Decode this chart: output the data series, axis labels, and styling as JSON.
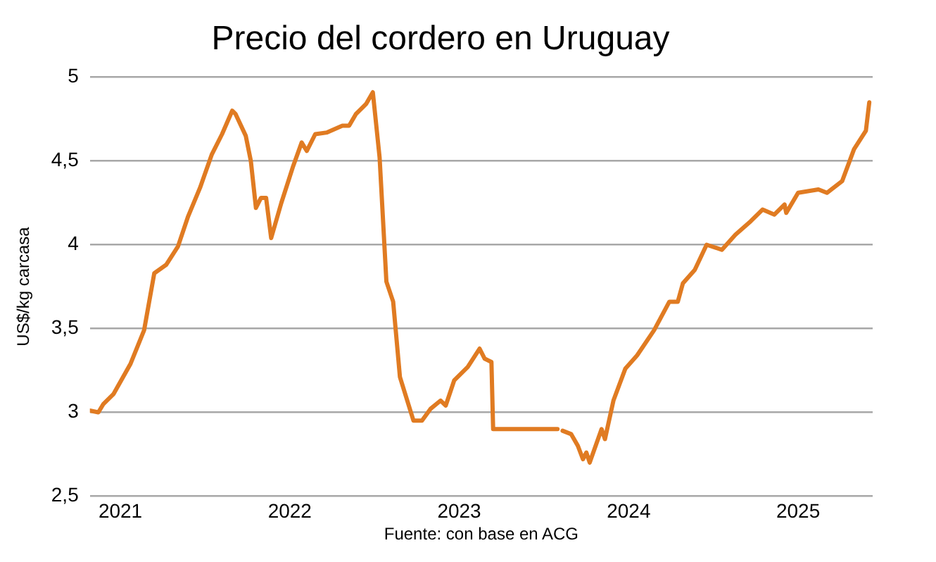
{
  "chart_data": {
    "type": "line",
    "title": "Precio del cordero en Uruguay",
    "ylabel": "US$/kg carcasa",
    "annotations": [
      "Fuente: con base en ACG"
    ],
    "x": [
      2020.82,
      2020.87,
      2020.9,
      2020.96,
      2021.06,
      2021.14,
      2021.2,
      2021.27,
      2021.34,
      2021.4,
      2021.47,
      2021.54,
      2021.6,
      2021.66,
      2021.68,
      2021.74,
      2021.77,
      2021.8,
      2021.83,
      2021.86,
      2021.89,
      2021.95,
      2022.02,
      2022.07,
      2022.1,
      2022.15,
      2022.22,
      2022.31,
      2022.35,
      2022.39,
      2022.45,
      2022.49,
      2022.53,
      2022.57,
      2022.61,
      2022.65,
      2022.73,
      2022.78,
      2022.83,
      2022.89,
      2022.92,
      2022.97,
      2023.05,
      2023.12,
      2023.15,
      2023.19,
      2023.2,
      2023.58,
      2023.6,
      2023.61,
      2023.66,
      2023.7,
      2023.73,
      2023.75,
      2023.77,
      2023.84,
      2023.86,
      2023.91,
      2023.98,
      2024.05,
      2024.15,
      2024.24,
      2024.29,
      2024.32,
      2024.39,
      2024.46,
      2024.55,
      2024.63,
      2024.72,
      2024.79,
      2024.86,
      2024.92,
      2024.93,
      2025.0,
      2025.12,
      2025.17,
      2025.26,
      2025.33,
      2025.4,
      2025.42
    ],
    "series": [
      {
        "color": "#e07b22",
        "values": [
          3.01,
          3.0,
          3.05,
          3.11,
          3.29,
          3.49,
          3.83,
          3.88,
          3.99,
          4.17,
          4.34,
          4.54,
          4.66,
          4.8,
          4.78,
          4.65,
          4.5,
          4.22,
          4.28,
          4.28,
          4.04,
          4.25,
          4.47,
          4.61,
          4.56,
          4.66,
          4.67,
          4.71,
          4.71,
          4.78,
          4.84,
          4.91,
          4.52,
          3.78,
          3.66,
          3.21,
          2.95,
          2.95,
          3.02,
          3.07,
          3.04,
          3.19,
          3.27,
          3.38,
          3.32,
          3.3,
          2.9,
          2.9,
          null,
          2.89,
          2.87,
          2.8,
          2.72,
          2.76,
          2.7,
          2.9,
          2.84,
          3.07,
          3.26,
          3.34,
          3.49,
          3.66,
          3.66,
          3.77,
          3.85,
          4.0,
          3.97,
          4.06,
          4.14,
          4.21,
          4.18,
          4.24,
          4.19,
          4.31,
          4.33,
          4.31,
          4.38,
          4.57,
          4.68,
          4.85
        ]
      }
    ],
    "xlim": [
      2020.82,
      2025.44
    ],
    "xticks": [
      {
        "value": 2021,
        "label": "2021"
      },
      {
        "value": 2022,
        "label": "2022"
      },
      {
        "value": 2023,
        "label": "2023"
      },
      {
        "value": 2024,
        "label": "2024"
      },
      {
        "value": 2025,
        "label": "2025"
      }
    ],
    "ylim": [
      2.5,
      5
    ],
    "yticks": [
      {
        "value": 2.5,
        "label": "2,5"
      },
      3,
      {
        "value": 3.5,
        "label": "3,5"
      },
      4,
      {
        "value": 4.5,
        "label": "4,5"
      },
      5
    ],
    "grid": "y",
    "legend": false,
    "marker": "none",
    "line_style": "solid"
  }
}
